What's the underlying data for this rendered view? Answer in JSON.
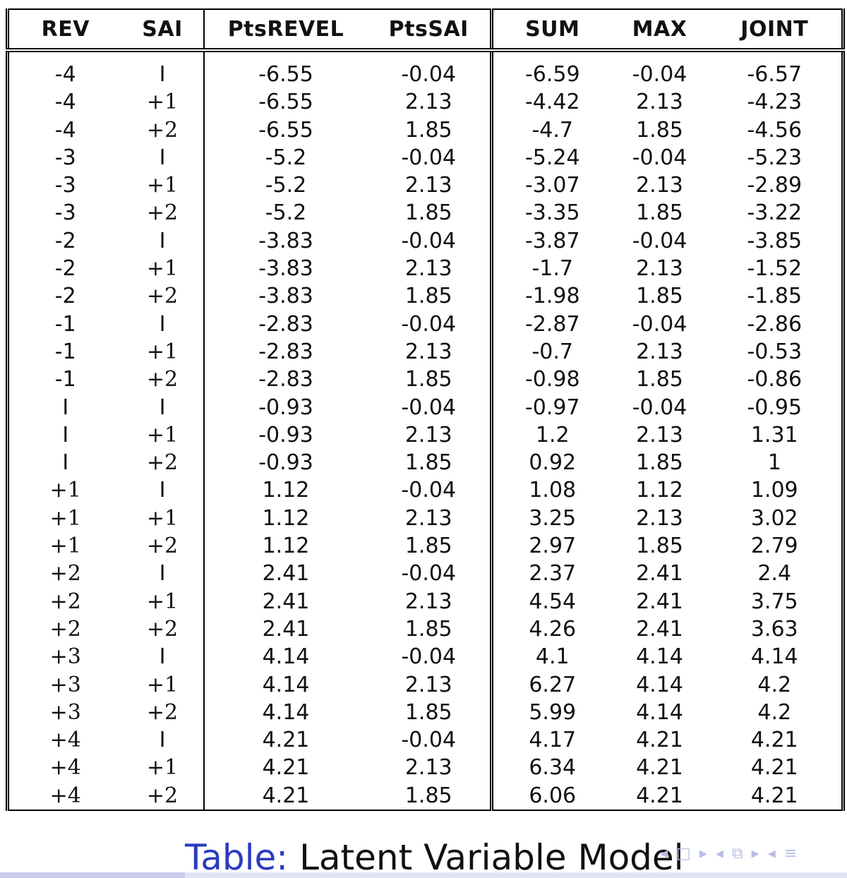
{
  "table": {
    "headers": [
      "REV",
      "SAI",
      "PtsREVEL",
      "PtsSAI",
      "SUM",
      "MAX",
      "JOINT"
    ],
    "rows": [
      [
        "-4",
        "I",
        "-6.55",
        "-0.04",
        "-6.59",
        "-0.04",
        "-6.57"
      ],
      [
        "-4",
        "+1",
        "-6.55",
        "2.13",
        "-4.42",
        "2.13",
        "-4.23"
      ],
      [
        "-4",
        "+2",
        "-6.55",
        "1.85",
        "-4.7",
        "1.85",
        "-4.56"
      ],
      [
        "-3",
        "I",
        "-5.2",
        "-0.04",
        "-5.24",
        "-0.04",
        "-5.23"
      ],
      [
        "-3",
        "+1",
        "-5.2",
        "2.13",
        "-3.07",
        "2.13",
        "-2.89"
      ],
      [
        "-3",
        "+2",
        "-5.2",
        "1.85",
        "-3.35",
        "1.85",
        "-3.22"
      ],
      [
        "-2",
        "I",
        "-3.83",
        "-0.04",
        "-3.87",
        "-0.04",
        "-3.85"
      ],
      [
        "-2",
        "+1",
        "-3.83",
        "2.13",
        "-1.7",
        "2.13",
        "-1.52"
      ],
      [
        "-2",
        "+2",
        "-3.83",
        "1.85",
        "-1.98",
        "1.85",
        "-1.85"
      ],
      [
        "-1",
        "I",
        "-2.83",
        "-0.04",
        "-2.87",
        "-0.04",
        "-2.86"
      ],
      [
        "-1",
        "+1",
        "-2.83",
        "2.13",
        "-0.7",
        "2.13",
        "-0.53"
      ],
      [
        "-1",
        "+2",
        "-2.83",
        "1.85",
        "-0.98",
        "1.85",
        "-0.86"
      ],
      [
        "I",
        "I",
        "-0.93",
        "-0.04",
        "-0.97",
        "-0.04",
        "-0.95"
      ],
      [
        "I",
        "+1",
        "-0.93",
        "2.13",
        "1.2",
        "2.13",
        "1.31"
      ],
      [
        "I",
        "+2",
        "-0.93",
        "1.85",
        "0.92",
        "1.85",
        "1"
      ],
      [
        "+1",
        "I",
        "1.12",
        "-0.04",
        "1.08",
        "1.12",
        "1.09"
      ],
      [
        "+1",
        "+1",
        "1.12",
        "2.13",
        "3.25",
        "2.13",
        "3.02"
      ],
      [
        "+1",
        "+2",
        "1.12",
        "1.85",
        "2.97",
        "1.85",
        "2.79"
      ],
      [
        "+2",
        "I",
        "2.41",
        "-0.04",
        "2.37",
        "2.41",
        "2.4"
      ],
      [
        "+2",
        "+1",
        "2.41",
        "2.13",
        "4.54",
        "2.41",
        "3.75"
      ],
      [
        "+2",
        "+2",
        "2.41",
        "1.85",
        "4.26",
        "2.41",
        "3.63"
      ],
      [
        "+3",
        "I",
        "4.14",
        "-0.04",
        "4.1",
        "4.14",
        "4.14"
      ],
      [
        "+3",
        "+1",
        "4.14",
        "2.13",
        "6.27",
        "4.14",
        "4.2"
      ],
      [
        "+3",
        "+2",
        "4.14",
        "1.85",
        "5.99",
        "4.14",
        "4.2"
      ],
      [
        "+4",
        "I",
        "4.21",
        "-0.04",
        "4.17",
        "4.21",
        "4.21"
      ],
      [
        "+4",
        "+1",
        "4.21",
        "2.13",
        "6.34",
        "4.21",
        "4.21"
      ],
      [
        "+4",
        "+2",
        "4.21",
        "1.85",
        "6.06",
        "4.21",
        "4.21"
      ]
    ]
  },
  "caption": {
    "label": "Table:",
    "text": "Latent Variable Model"
  },
  "nav": {
    "icons": [
      "nav-frame-left-icon",
      "nav-frame-right-icon",
      "nav-section-left-icon",
      "nav-section-icon",
      "nav-section-right-icon",
      "nav-subsection-left-icon",
      "nav-menu-icon"
    ]
  },
  "colors": {
    "caption_label": "#2b3bbf",
    "nav_icons": "#b7bde6",
    "bottom_bar": "#c9ccec"
  }
}
